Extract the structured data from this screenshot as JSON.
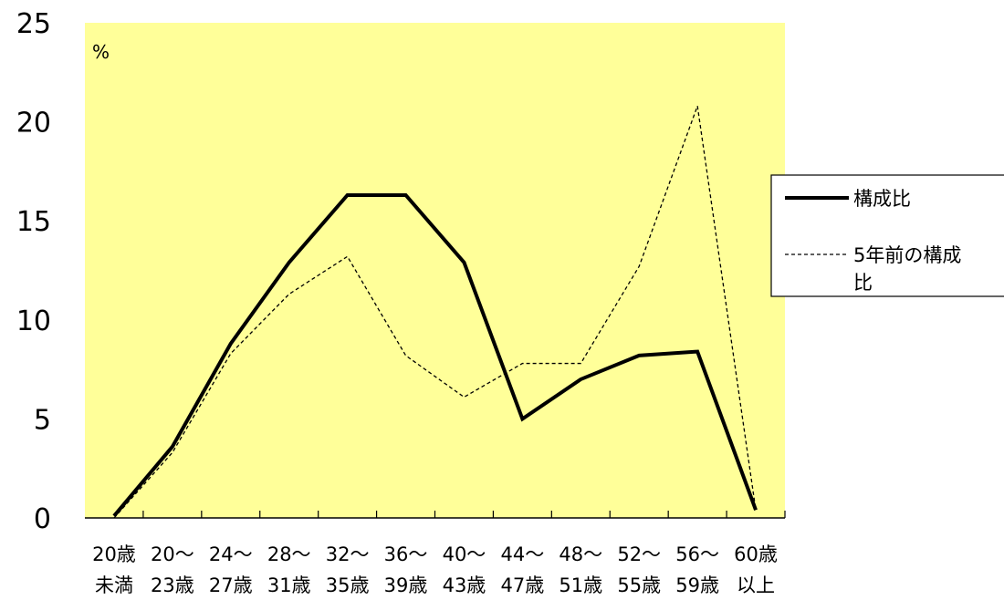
{
  "chart_data": {
    "type": "line",
    "title": "",
    "xlabel": "",
    "ylabel": "",
    "unit_label": "%",
    "categories": [
      [
        "20歳",
        "未満"
      ],
      [
        "20～",
        "23歳"
      ],
      [
        "24～",
        "27歳"
      ],
      [
        "28～",
        "31歳"
      ],
      [
        "32～",
        "35歳"
      ],
      [
        "36～",
        "39歳"
      ],
      [
        "40～",
        "43歳"
      ],
      [
        "44～",
        "47歳"
      ],
      [
        "48～",
        "51歳"
      ],
      [
        "52～",
        "55歳"
      ],
      [
        "56～",
        "59歳"
      ],
      [
        "60歳",
        "以上"
      ]
    ],
    "ylim": [
      0,
      25
    ],
    "yticks": [
      "0",
      "5",
      "10",
      "15",
      "20",
      "25"
    ],
    "grid": false,
    "legend_position": "right",
    "plot_background": "#ffff99",
    "series": [
      {
        "name": "構成比",
        "style": "solid-thick",
        "values": [
          0.1,
          3.6,
          8.8,
          12.9,
          16.3,
          16.3,
          12.9,
          5.0,
          7.0,
          8.2,
          8.4,
          0.4
        ]
      },
      {
        "name": "5年前の構成比",
        "style": "dashed-thin",
        "values": [
          0.0,
          3.3,
          8.3,
          11.3,
          13.2,
          8.2,
          6.1,
          7.8,
          7.8,
          12.7,
          20.8,
          0.4
        ]
      }
    ]
  }
}
